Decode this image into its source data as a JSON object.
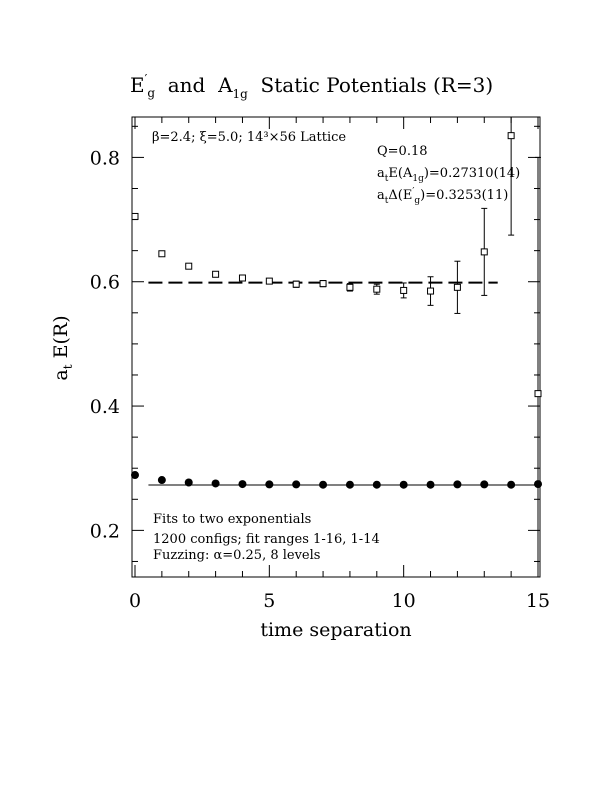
{
  "chart_data": {
    "type": "scatter",
    "title": {
      "part1_main": "E",
      "part1_sup": "′",
      "part1_sub": "g",
      "part2": "  and  A",
      "part2_sub": "1g",
      "part3": "  Static Potentials (R=3)"
    },
    "xlabel": "time separation",
    "ylabel": {
      "main": "a",
      "sub": "t",
      "rest": " E(R)"
    },
    "xlim": [
      0,
      15
    ],
    "ylim": [
      0.125,
      0.865
    ],
    "xticks": [
      0,
      5,
      10,
      15
    ],
    "xtick_labels": [
      "0",
      "5",
      "10",
      "15"
    ],
    "yticks": [
      0.2,
      0.4,
      0.6,
      0.8
    ],
    "ytick_labels": [
      "0.2",
      "0.4",
      "0.6",
      "0.8"
    ],
    "grid": false,
    "annotations": {
      "lattice": "β=2.4; ξ=5.0; 14³×56 Lattice",
      "q": "Q=0.18",
      "a1g_fit": {
        "pre": "a",
        "pre_sub": "t",
        "mid": "E(A",
        "mid_sub": "1g",
        "post": ")=0.27310(14)"
      },
      "eg_fit": {
        "pre": "a",
        "pre_sub": "t",
        "mid": "Δ(E",
        "mid_sup": "′",
        "mid_sub": "g",
        "post": ")=0.3253(11)"
      },
      "fits": "Fits to two exponentials",
      "configs": "1200 configs; fit ranges 1-16, 1-14",
      "fuzzing": "Fuzzing: α=0.25, 8 levels"
    },
    "series": [
      {
        "marker": "open-square",
        "points": [
          {
            "x": 0,
            "y": 0.705,
            "err": 0.004
          },
          {
            "x": 1,
            "y": 0.645,
            "err": 0.004
          },
          {
            "x": 2,
            "y": 0.625,
            "err": 0.004
          },
          {
            "x": 3,
            "y": 0.612,
            "err": 0.004
          },
          {
            "x": 4,
            "y": 0.606,
            "err": 0.004
          },
          {
            "x": 5,
            "y": 0.601,
            "err": 0.004
          },
          {
            "x": 6,
            "y": 0.596,
            "err": 0.005
          },
          {
            "x": 7,
            "y": 0.597,
            "err": 0.005
          },
          {
            "x": 8,
            "y": 0.591,
            "err": 0.006
          },
          {
            "x": 9,
            "y": 0.588,
            "err": 0.008
          },
          {
            "x": 10,
            "y": 0.586,
            "err": 0.012
          },
          {
            "x": 11,
            "y": 0.585,
            "err": 0.023
          },
          {
            "x": 12,
            "y": 0.591,
            "err": 0.042
          },
          {
            "x": 13,
            "y": 0.648,
            "err": 0.07
          },
          {
            "x": 14,
            "y": 0.835,
            "err": 0.16
          },
          {
            "x": 15,
            "y": 0.42,
            "err": 0.38
          }
        ],
        "fit_line": {
          "style": "dashed",
          "x": [
            0.5,
            13.5
          ],
          "y": 0.5985
        }
      },
      {
        "marker": "filled-circle",
        "points": [
          {
            "x": 0,
            "y": 0.289,
            "err": 0.002
          },
          {
            "x": 1,
            "y": 0.281,
            "err": 0.002
          },
          {
            "x": 2,
            "y": 0.277,
            "err": 0.002
          },
          {
            "x": 3,
            "y": 0.2755,
            "err": 0.002
          },
          {
            "x": 4,
            "y": 0.2745,
            "err": 0.002
          },
          {
            "x": 5,
            "y": 0.274,
            "err": 0.002
          },
          {
            "x": 6,
            "y": 0.274,
            "err": 0.002
          },
          {
            "x": 7,
            "y": 0.2735,
            "err": 0.002
          },
          {
            "x": 8,
            "y": 0.2735,
            "err": 0.002
          },
          {
            "x": 9,
            "y": 0.2735,
            "err": 0.002
          },
          {
            "x": 10,
            "y": 0.2735,
            "err": 0.002
          },
          {
            "x": 11,
            "y": 0.2735,
            "err": 0.002
          },
          {
            "x": 12,
            "y": 0.274,
            "err": 0.002
          },
          {
            "x": 13,
            "y": 0.274,
            "err": 0.002
          },
          {
            "x": 14,
            "y": 0.2735,
            "err": 0.002
          },
          {
            "x": 15,
            "y": 0.2745,
            "err": 0.003
          }
        ],
        "fit_line": {
          "style": "solid",
          "x": [
            0.5,
            15
          ],
          "y": 0.2731
        }
      }
    ]
  }
}
